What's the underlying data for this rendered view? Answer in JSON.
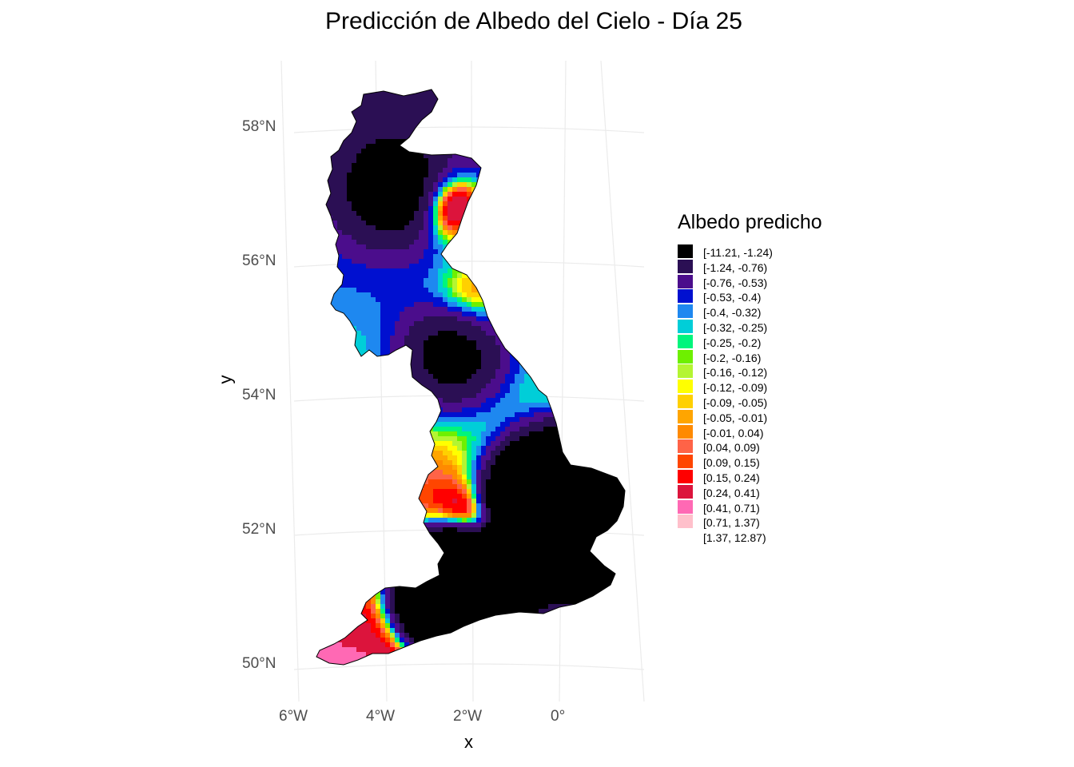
{
  "map": {
    "title": "Predicción de Albedo del Cielo - Día 25",
    "x_axis_title": "x",
    "y_axis_title": "y",
    "x_ticks": [
      "6°W",
      "4°W",
      "2°W",
      "0°"
    ],
    "y_ticks": [
      "58°N",
      "56°N",
      "54°N",
      "52°N",
      "50°N"
    ],
    "extent": {
      "lon": [
        -6.0,
        2.0
      ],
      "lat": [
        49.9,
        58.7
      ]
    },
    "grid": true,
    "region": "Great Britain (England, Wales, Scotland)"
  },
  "legend": {
    "title": "Albedo predicho",
    "placement": "right",
    "items": [
      {
        "label": "[-11.21, -1.24)",
        "color": "#000000"
      },
      {
        "label": "[-1.24, -0.76)",
        "color": "#2b0f54"
      },
      {
        "label": "[-0.76, -0.53)",
        "color": "#4b0d8c"
      },
      {
        "label": "[-0.53, -0.4)",
        "color": "#0010d0"
      },
      {
        "label": "[-0.4, -0.32)",
        "color": "#1e88f0"
      },
      {
        "label": "[-0.32, -0.25)",
        "color": "#00ced8"
      },
      {
        "label": "[-0.25, -0.2)",
        "color": "#00f57c"
      },
      {
        "label": "[-0.2, -0.16)",
        "color": "#6ef000"
      },
      {
        "label": "[-0.16, -0.12)",
        "color": "#b4f532"
      },
      {
        "label": "[-0.12, -0.09)",
        "color": "#ffff00"
      },
      {
        "label": "[-0.09, -0.05)",
        "color": "#ffd000"
      },
      {
        "label": "[-0.05, -0.01)",
        "color": "#ffa500"
      },
      {
        "label": "[-0.01, 0.04)",
        "color": "#ff8a00"
      },
      {
        "label": "[0.04, 0.09)",
        "color": "#ff6347"
      },
      {
        "label": "[0.09, 0.15)",
        "color": "#ff4500"
      },
      {
        "label": "[0.15, 0.24)",
        "color": "#ff0000"
      },
      {
        "label": "[0.24, 0.41)",
        "color": "#dc143c"
      },
      {
        "label": "[0.41, 0.71)",
        "color": "#ff69b4"
      },
      {
        "label": "[0.71, 1.37)",
        "color": "#ffc0cb"
      },
      {
        "label": "[1.37, 12.87)",
        "color": "#ffffff"
      }
    ]
  }
}
